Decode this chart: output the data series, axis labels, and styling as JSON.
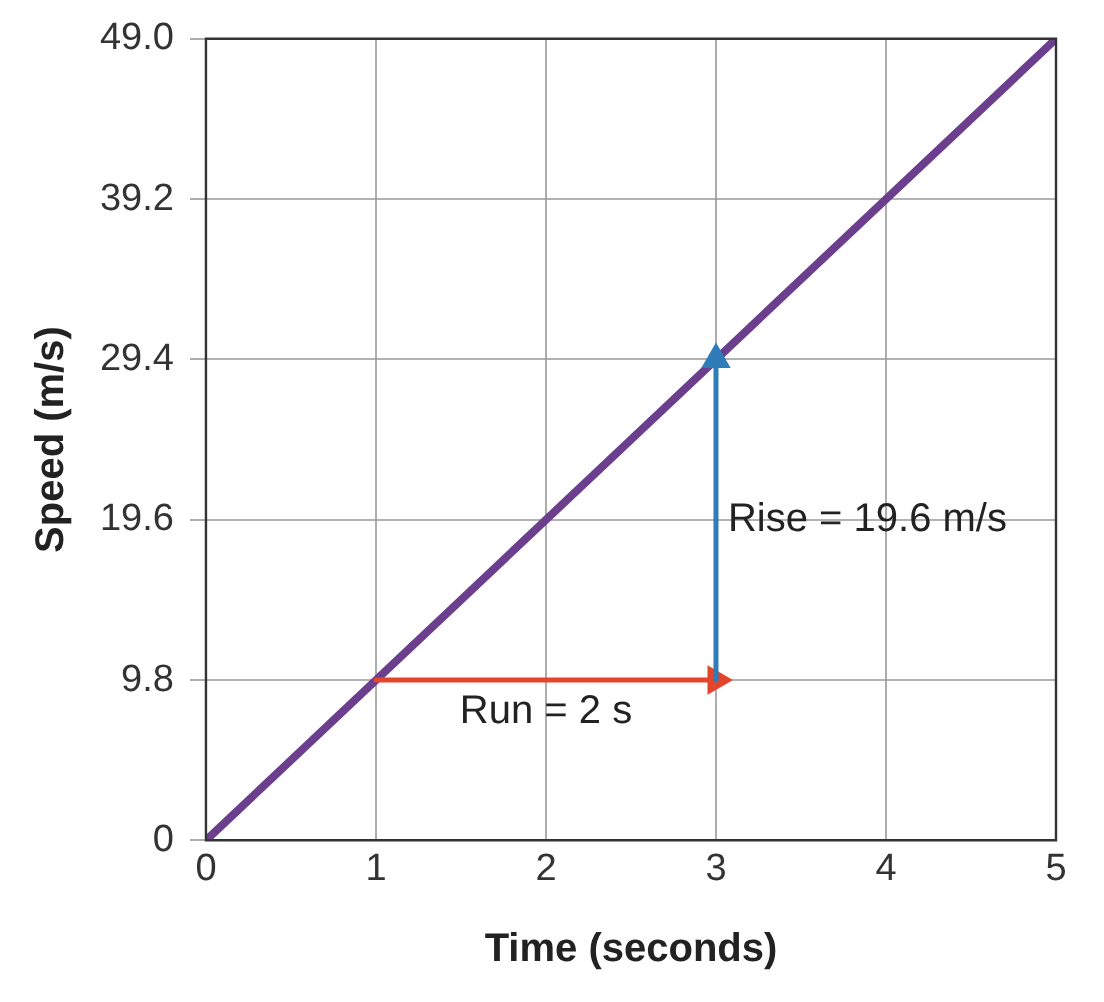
{
  "chart_data": {
    "type": "line",
    "xlabel": "Time (seconds)",
    "ylabel": "Speed (m/s)",
    "xlim": [
      0,
      5
    ],
    "xticks": [
      0,
      1,
      2,
      3,
      4,
      5
    ],
    "ylim": [
      0,
      49
    ],
    "yticks": [
      0,
      9.8,
      19.6,
      29.4,
      39.2,
      {
        "value": 49,
        "label": "49.0"
      }
    ],
    "grid": true,
    "legend": false,
    "line_style": "solid",
    "series": [
      {
        "color": "#6b3f8e",
        "x": [
          0,
          5
        ],
        "values": [
          0,
          49
        ]
      },
      {
        "color": "#e2452b",
        "x": [
          1,
          3
        ],
        "values": [
          9.8,
          9.8
        ]
      },
      {
        "color": "#2e7db8",
        "x": [
          3,
          3
        ],
        "values": [
          9.8,
          29.4
        ]
      }
    ],
    "annotations": [
      {
        "text": "Run = 2 s",
        "x": 2,
        "y": 9.8
      },
      {
        "text": "Rise = 19.6 m/s",
        "x": 3,
        "y": 19.6
      }
    ]
  }
}
